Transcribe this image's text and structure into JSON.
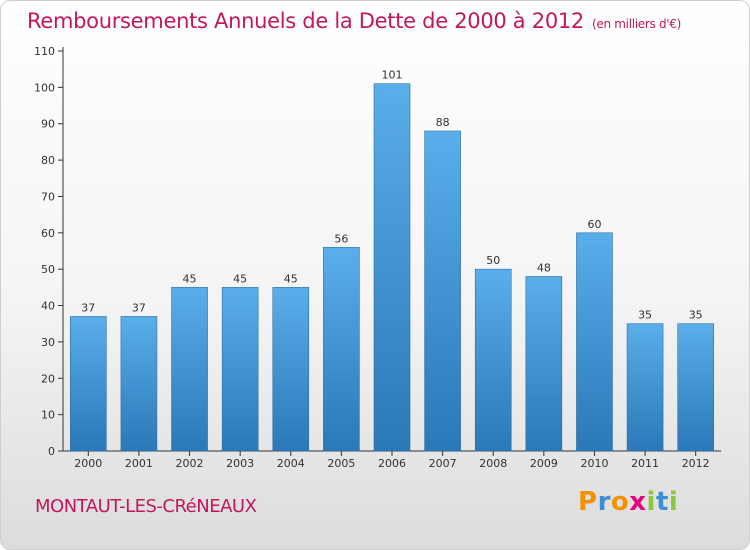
{
  "header": {
    "title": "Remboursements Annuels de la Dette de 2000 à 2012",
    "unit_note": "(en milliers d'€)"
  },
  "footer": {
    "commune": "MONTAUT-LES-CRéNEAUX",
    "brand": "Proxiti"
  },
  "colors": {
    "title": "#c2185b",
    "bar_top": "#5aaee9",
    "bar_bottom": "#2a78b8"
  },
  "chart_data": {
    "type": "bar",
    "title": "Remboursements Annuels de la Dette de 2000 à 2012",
    "xlabel": "",
    "ylabel": "",
    "categories": [
      "2000",
      "2001",
      "2002",
      "2003",
      "2004",
      "2005",
      "2006",
      "2007",
      "2008",
      "2009",
      "2010",
      "2011",
      "2012"
    ],
    "values": [
      37,
      37,
      45,
      45,
      45,
      56,
      101,
      88,
      50,
      48,
      60,
      35,
      35
    ],
    "ylim": [
      0,
      110
    ],
    "yticks": [
      0,
      10,
      20,
      30,
      40,
      50,
      60,
      70,
      80,
      90,
      100,
      110
    ],
    "grid": false,
    "data_labels": true
  }
}
